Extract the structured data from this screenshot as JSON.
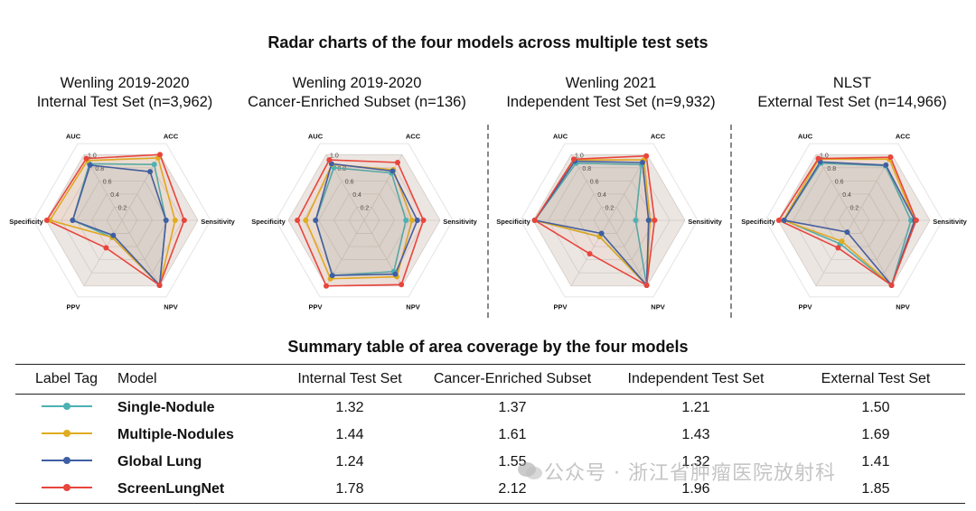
{
  "page_title": "Radar charts of the four models across multiple test sets",
  "summary_title": "Summary table of area coverage by the four models",
  "watermark": "公众号 · 浙江省肿瘤医院放射科",
  "chart_data": {
    "type": "radar",
    "axes": [
      "AUC",
      "ACC",
      "Sensitivity",
      "NPV",
      "PPV",
      "Specificity"
    ],
    "rlim": [
      0,
      1.0
    ],
    "ticks": [
      "0.2",
      "0.4",
      "0.6",
      "0.8",
      "1.0"
    ],
    "colors": {
      "Single-Nodule": "#4cb1b2",
      "Multiple-Nodules": "#e0ac1f",
      "Global Lung": "#3f5fa3",
      "ScreenLungNet": "#e8453c"
    },
    "panels": [
      {
        "title_line1": "Wenling 2019-2020",
        "title_line2": "Internal Test Set (n=3,962)",
        "series": [
          {
            "name": "Single-Nodule",
            "values": [
              0.86,
              0.85,
              0.58,
              0.99,
              0.26,
              0.65
            ]
          },
          {
            "name": "Multiple-Nodules",
            "values": [
              0.91,
              0.95,
              0.7,
              0.99,
              0.26,
              0.95
            ]
          },
          {
            "name": "Global Lung",
            "values": [
              0.84,
              0.74,
              0.58,
              0.99,
              0.23,
              0.65
            ]
          },
          {
            "name": "ScreenLungNet",
            "values": [
              0.94,
              1.0,
              0.82,
              0.99,
              0.42,
              0.99
            ]
          }
        ]
      },
      {
        "title_line1": "Wenling 2019-2020",
        "title_line2": "Cancer-Enriched Subset (n=136)",
        "series": [
          {
            "name": "Single-Nodule",
            "values": [
              0.8,
              0.72,
              0.55,
              0.78,
              0.84,
              0.64
            ]
          },
          {
            "name": "Multiple-Nodules",
            "values": [
              0.85,
              0.77,
              0.63,
              0.86,
              0.89,
              0.77
            ]
          },
          {
            "name": "Global Lung",
            "values": [
              0.86,
              0.75,
              0.7,
              0.82,
              0.84,
              0.64
            ]
          },
          {
            "name": "ScreenLungNet",
            "values": [
              0.92,
              0.88,
              0.78,
              0.98,
              1.0,
              0.88
            ]
          }
        ]
      },
      {
        "title_line1": "Wenling 2021",
        "title_line2": "Independent Test Set (n=9,932)",
        "series": [
          {
            "name": "Single-Nodule",
            "values": [
              0.87,
              0.85,
              0.35,
              0.99,
              0.25,
              0.98
            ]
          },
          {
            "name": "Multiple-Nodules",
            "values": [
              0.92,
              0.92,
              0.54,
              0.99,
              0.25,
              0.98
            ]
          },
          {
            "name": "Global Lung",
            "values": [
              0.9,
              0.88,
              0.52,
              0.99,
              0.2,
              0.98
            ]
          },
          {
            "name": "ScreenLungNet",
            "values": [
              0.93,
              0.98,
              0.6,
              0.99,
              0.51,
              0.98
            ]
          }
        ]
      },
      {
        "title_line1": "NLST",
        "title_line2": "External Test Set (n=14,966)",
        "series": [
          {
            "name": "Single-Nodule",
            "values": [
              0.87,
              0.83,
              0.75,
              0.99,
              0.36,
              0.92
            ]
          },
          {
            "name": "Multiple-Nodules",
            "values": [
              0.93,
              0.93,
              0.8,
              0.99,
              0.32,
              0.93
            ]
          },
          {
            "name": "Global Lung",
            "values": [
              0.89,
              0.84,
              0.8,
              0.99,
              0.18,
              0.92
            ]
          },
          {
            "name": "ScreenLungNet",
            "values": [
              0.94,
              0.96,
              0.82,
              0.99,
              0.42,
              0.99
            ]
          }
        ]
      }
    ]
  },
  "table": {
    "headers": [
      "Label Tag",
      "Model",
      "Internal Test Set",
      "Cancer-Enriched Subset",
      "Independent Test Set",
      "External Test Set"
    ],
    "rows": [
      {
        "model": "Single-Nodule",
        "color": "#4cb1b2",
        "internal": "1.32",
        "cancer_enriched": "1.37",
        "independent": "1.21",
        "external": "1.50"
      },
      {
        "model": "Multiple-Nodules",
        "color": "#e0ac1f",
        "internal": "1.44",
        "cancer_enriched": "1.61",
        "independent": "1.43",
        "external": "1.69"
      },
      {
        "model": "Global Lung",
        "color": "#3f5fa3",
        "internal": "1.24",
        "cancer_enriched": "1.55",
        "independent": "1.32",
        "external": "1.41"
      },
      {
        "model": "ScreenLungNet",
        "color": "#e8453c",
        "internal": "1.78",
        "cancer_enriched": "2.12",
        "independent": "1.96",
        "external": "1.85"
      }
    ]
  }
}
